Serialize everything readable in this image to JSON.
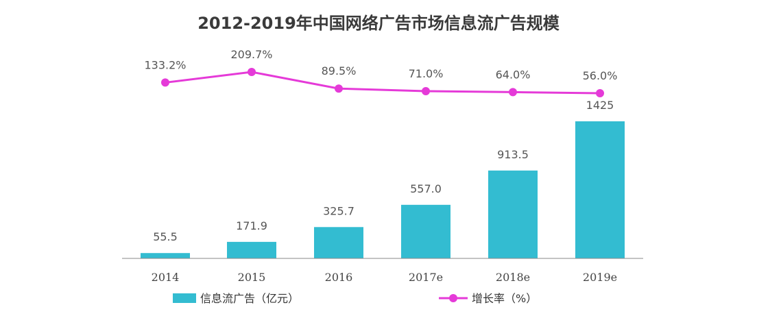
{
  "chart_data": {
    "type": "bar",
    "title": "2012-2019年中国网络广告市场信息流广告规模",
    "categories": [
      "2014",
      "2015",
      "2016",
      "2017e",
      "2018e",
      "2019e"
    ],
    "series": [
      {
        "name": "信息流广告（亿元）",
        "type": "bar",
        "values": [
          55.5,
          171.9,
          325.7,
          557.0,
          913.5,
          1425
        ],
        "labels": [
          "55.5",
          "171.9",
          "325.7",
          "557.0",
          "913.5",
          "1425"
        ],
        "color": "#33BCD1"
      },
      {
        "name": "增长率（%）",
        "type": "line",
        "values": [
          133.2,
          209.7,
          89.5,
          71.0,
          64.0,
          56.0
        ],
        "labels": [
          "133.2%",
          "209.7%",
          "89.5%",
          "71.0%",
          "64.0%",
          "56.0%"
        ],
        "color": "#E53AD8"
      }
    ],
    "legend_position": "bottom",
    "grid": false
  }
}
